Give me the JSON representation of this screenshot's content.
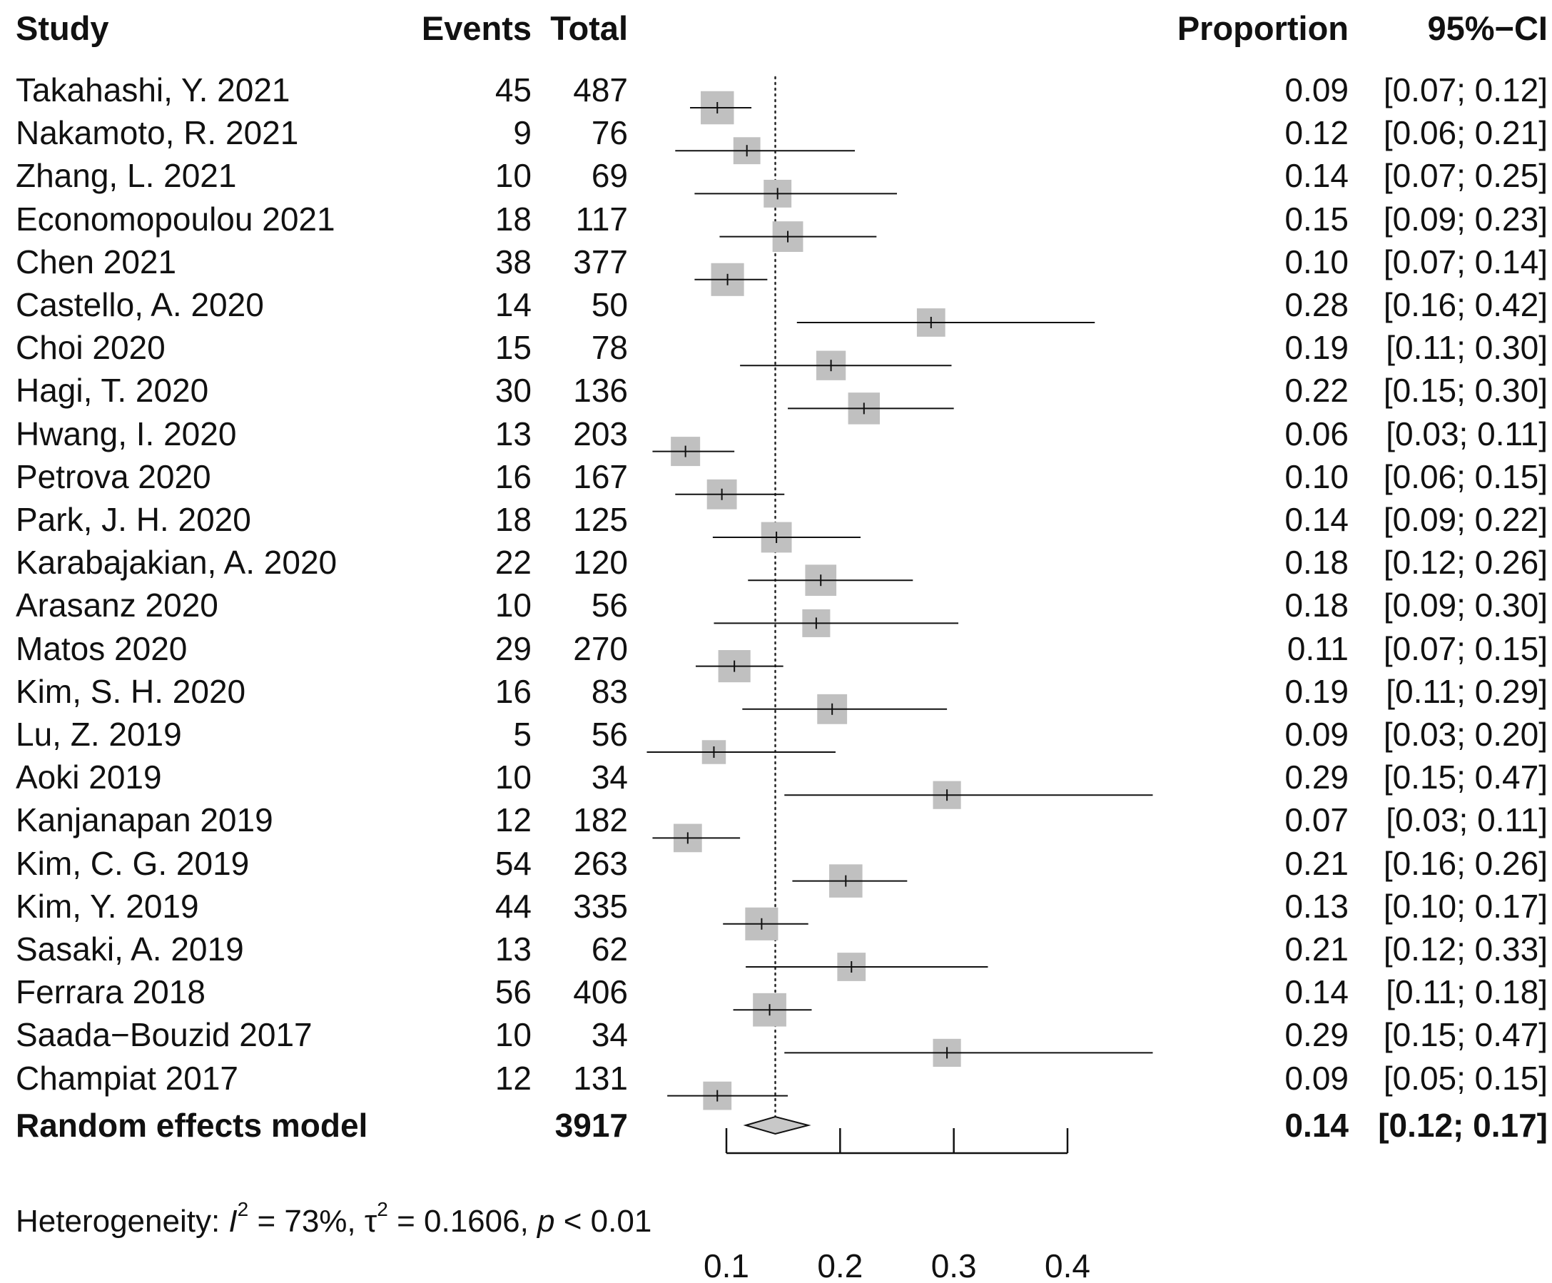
{
  "headers": {
    "study": "Study",
    "events": "Events",
    "total": "Total",
    "proportion": "Proportion",
    "ci": "95%−CI"
  },
  "studies": [
    {
      "study": "Takahashi, Y.   2021",
      "events": "45",
      "total": "487",
      "prop": "0.09",
      "ci": "[0.07; 0.12]"
    },
    {
      "study": "Nakamoto, R.   2021",
      "events": "9",
      "total": "76",
      "prop": "0.12",
      "ci": "[0.06; 0.21]"
    },
    {
      "study": "Zhang, L.   2021",
      "events": "10",
      "total": "69",
      "prop": "0.14",
      "ci": "[0.07; 0.25]"
    },
    {
      "study": "Economopoulou   2021",
      "events": "18",
      "total": "117",
      "prop": "0.15",
      "ci": "[0.09; 0.23]"
    },
    {
      "study": "Chen  2021",
      "events": "38",
      "total": "377",
      "prop": "0.10",
      "ci": "[0.07; 0.14]"
    },
    {
      "study": "Castello, A.   2020",
      "events": "14",
      "total": "50",
      "prop": "0.28",
      "ci": "[0.16; 0.42]"
    },
    {
      "study": "Choi   2020",
      "events": "15",
      "total": "78",
      "prop": "0.19",
      "ci": "[0.11; 0.30]"
    },
    {
      "study": "Hagi, T.   2020",
      "events": "30",
      "total": "136",
      "prop": "0.22",
      "ci": "[0.15; 0.30]"
    },
    {
      "study": "Hwang, I. 2020",
      "events": "13",
      "total": "203",
      "prop": "0.06",
      "ci": "[0.03; 0.11]"
    },
    {
      "study": "Petrova   2020",
      "events": "16",
      "total": "167",
      "prop": "0.10",
      "ci": "[0.06; 0.15]"
    },
    {
      "study": "Park, J. H.   2020",
      "events": "18",
      "total": "125",
      "prop": "0.14",
      "ci": "[0.09; 0.22]"
    },
    {
      "study": "Karabajakian, A.   2020",
      "events": "22",
      "total": "120",
      "prop": "0.18",
      "ci": "[0.12; 0.26]"
    },
    {
      "study": "Arasanz   2020",
      "events": "10",
      "total": "56",
      "prop": "0.18",
      "ci": "[0.09; 0.30]"
    },
    {
      "study": "Matos   2020",
      "events": "29",
      "total": "270",
      "prop": "0.11",
      "ci": "[0.07; 0.15]"
    },
    {
      "study": "Kim, S. H.   2020",
      "events": "16",
      "total": "83",
      "prop": "0.19",
      "ci": "[0.11; 0.29]"
    },
    {
      "study": "Lu, Z.   2019",
      "events": "5",
      "total": "56",
      "prop": "0.09",
      "ci": "[0.03; 0.20]"
    },
    {
      "study": "Aoki   2019",
      "events": "10",
      "total": "34",
      "prop": "0.29",
      "ci": "[0.15; 0.47]"
    },
    {
      "study": "Kanjanapan   2019",
      "events": "12",
      "total": "182",
      "prop": "0.07",
      "ci": "[0.03; 0.11]"
    },
    {
      "study": "Kim, C. G.   2019",
      "events": "54",
      "total": "263",
      "prop": "0.21",
      "ci": "[0.16; 0.26]"
    },
    {
      "study": "Kim, Y.   2019",
      "events": "44",
      "total": "335",
      "prop": "0.13",
      "ci": "[0.10; 0.17]"
    },
    {
      "study": "Sasaki, A. 2019",
      "events": "13",
      "total": "62",
      "prop": "0.21",
      "ci": "[0.12; 0.33]"
    },
    {
      "study": "Ferrara   2018",
      "events": "56",
      "total": "406",
      "prop": "0.14",
      "ci": "[0.11; 0.18]"
    },
    {
      "study": "Saada−Bouzid   2017",
      "events": "10",
      "total": "34",
      "prop": "0.29",
      "ci": "[0.15; 0.47]"
    },
    {
      "study": "Champiat   2017",
      "events": "12",
      "total": "131",
      "prop": "0.09",
      "ci": "[0.05; 0.15]"
    }
  ],
  "summary": {
    "label": "Random effects model",
    "total": "3917",
    "prop": "0.14",
    "ci": "[0.12; 0.17]"
  },
  "heterogeneity": {
    "prefix": "Heterogeneity: ",
    "i2_symbol": "I",
    "i2_sup": "2",
    "i2_value": " = 73%, ",
    "tau_symbol": "τ",
    "tau_sup": "2",
    "tau_value": " = 0.1606, ",
    "p_symbol": "p",
    "p_value": " < 0.01"
  },
  "chart_data": {
    "type": "forest",
    "xlabel": "",
    "ylabel": "",
    "xlim": [
      0.1,
      0.4
    ],
    "xticks": [
      0.1,
      0.2,
      0.3,
      0.4
    ],
    "xtick_labels": [
      "0.1",
      "0.2",
      "0.3",
      "0.4"
    ],
    "reference_line": 0.143,
    "study_estimates": [
      {
        "est": 0.092,
        "lo": 0.068,
        "hi": 0.122,
        "weight": 4.84
      },
      {
        "est": 0.118,
        "lo": 0.055,
        "hi": 0.213,
        "weight": 3.94
      },
      {
        "est": 0.145,
        "lo": 0.072,
        "hi": 0.25,
        "weight": 4.05
      },
      {
        "est": 0.154,
        "lo": 0.094,
        "hi": 0.232,
        "weight": 4.46
      },
      {
        "est": 0.101,
        "lo": 0.072,
        "hi": 0.136,
        "weight": 4.8
      },
      {
        "est": 0.28,
        "lo": 0.162,
        "hi": 0.424,
        "weight": 4.14
      },
      {
        "est": 0.192,
        "lo": 0.112,
        "hi": 0.298,
        "weight": 4.3
      },
      {
        "est": 0.221,
        "lo": 0.154,
        "hi": 0.3,
        "weight": 4.63
      },
      {
        "est": 0.064,
        "lo": 0.035,
        "hi": 0.107,
        "weight": 4.27
      },
      {
        "est": 0.096,
        "lo": 0.055,
        "hi": 0.151,
        "weight": 4.36
      },
      {
        "est": 0.144,
        "lo": 0.088,
        "hi": 0.218,
        "weight": 4.46
      },
      {
        "est": 0.183,
        "lo": 0.119,
        "hi": 0.264,
        "weight": 4.55
      },
      {
        "est": 0.179,
        "lo": 0.089,
        "hi": 0.304,
        "weight": 4.07
      },
      {
        "est": 0.107,
        "lo": 0.073,
        "hi": 0.15,
        "weight": 4.7
      },
      {
        "est": 0.193,
        "lo": 0.114,
        "hi": 0.294,
        "weight": 4.36
      },
      {
        "est": 0.089,
        "lo": 0.03,
        "hi": 0.196,
        "weight": 3.49
      },
      {
        "est": 0.294,
        "lo": 0.151,
        "hi": 0.475,
        "weight": 4.08
      },
      {
        "est": 0.066,
        "lo": 0.035,
        "hi": 0.112,
        "weight": 4.14
      },
      {
        "est": 0.205,
        "lo": 0.158,
        "hi": 0.259,
        "weight": 4.85
      },
      {
        "est": 0.131,
        "lo": 0.097,
        "hi": 0.172,
        "weight": 4.8
      },
      {
        "est": 0.21,
        "lo": 0.117,
        "hi": 0.33,
        "weight": 4.14
      },
      {
        "est": 0.138,
        "lo": 0.106,
        "hi": 0.175,
        "weight": 4.87
      },
      {
        "est": 0.294,
        "lo": 0.151,
        "hi": 0.475,
        "weight": 4.08
      },
      {
        "est": 0.092,
        "lo": 0.048,
        "hi": 0.154,
        "weight": 4.14
      }
    ],
    "summary_estimate": {
      "est": 0.143,
      "lo": 0.117,
      "hi": 0.172
    }
  }
}
